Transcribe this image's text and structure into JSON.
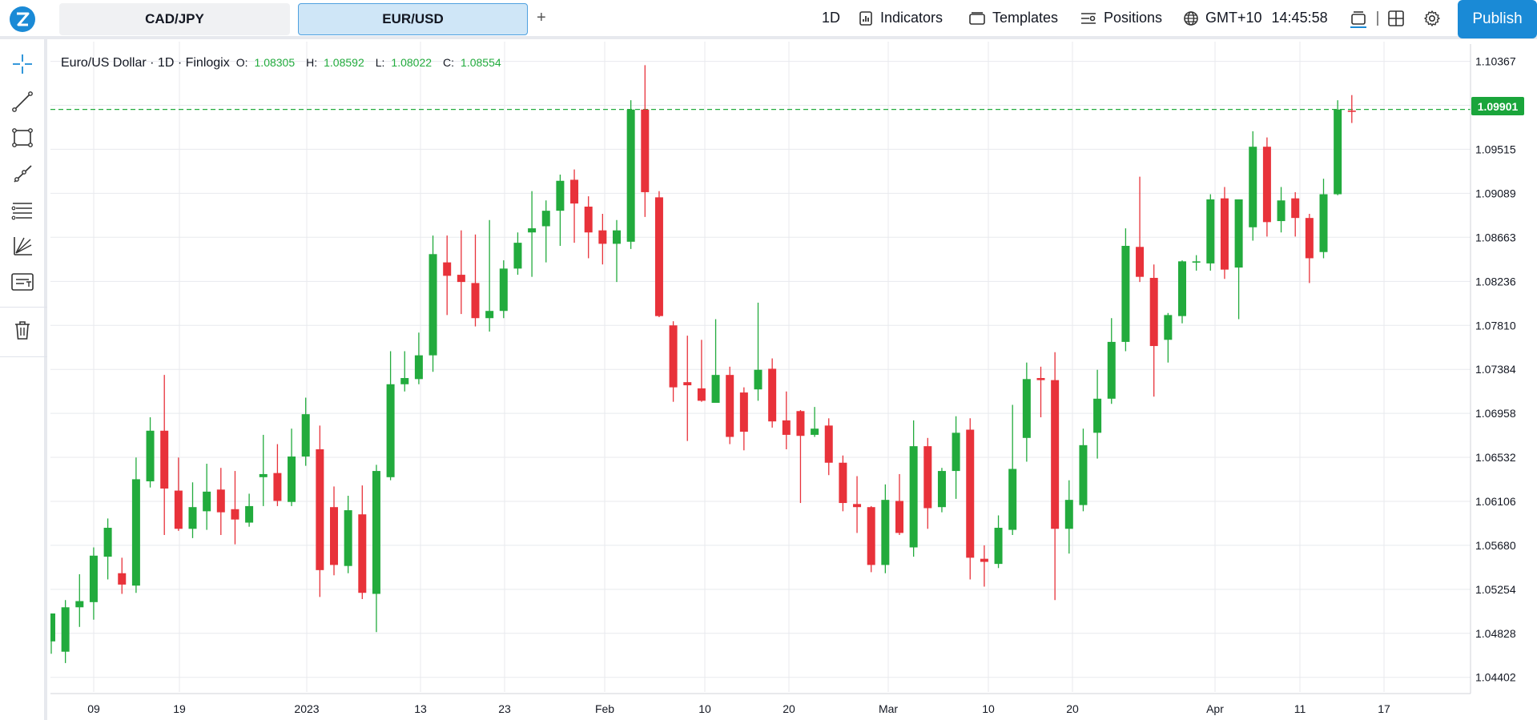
{
  "toolbar": {
    "tabs": [
      {
        "label": "CAD/JPY",
        "active": false
      },
      {
        "label": "EUR/USD",
        "active": true
      }
    ],
    "add_tab_label": "+",
    "interval": "1D",
    "indicators": "Indicators",
    "templates": "Templates",
    "positions": "Positions",
    "timezone": "GMT+10",
    "clock": "14:45:58",
    "publish": "Publish"
  },
  "left_tools": [
    "crosshair-icon",
    "trend-line-icon",
    "rectangle-icon",
    "ray-icon",
    "fib-retracement-icon",
    "pitchfork-icon",
    "text-note-icon",
    "trash-icon"
  ],
  "legend": {
    "title": "Euro/US Dollar · 1D · Finlogix",
    "o_label": "O:",
    "o": "1.08305",
    "h_label": "H:",
    "h": "1.08592",
    "l_label": "L:",
    "l": "1.08022",
    "c_label": "C:",
    "c": "1.08554"
  },
  "last_price": "1.09901",
  "colors": {
    "up": "#22ab3d",
    "down": "#e8323a",
    "accent": "#1a8ad6",
    "grid": "#e8eaee"
  },
  "chart_data": {
    "type": "candlestick",
    "y_ticks": [
      "1.10367",
      "1.09941",
      "1.09515",
      "1.09089",
      "1.08663",
      "1.08236",
      "1.07810",
      "1.07384",
      "1.06958",
      "1.06532",
      "1.06106",
      "1.05680",
      "1.05254",
      "1.04828",
      "1.04402"
    ],
    "x_ticks": [
      "09",
      "19",
      "2023",
      "13",
      "23",
      "Feb",
      "10",
      "20",
      "Mar",
      "10",
      "20",
      "Apr",
      "11",
      "17"
    ],
    "ylim": [
      1.0426,
      1.1048
    ],
    "last_price": 1.09901,
    "candles": [
      [
        1.0475,
        1.0502,
        1.0463,
        1.0499
      ],
      [
        1.0465,
        1.0508,
        1.0454,
        1.0515
      ],
      [
        1.0508,
        1.0514,
        1.0489,
        1.054
      ],
      [
        1.0513,
        1.0558,
        1.0496,
        1.0566
      ],
      [
        1.0557,
        1.0585,
        1.0535,
        1.0594
      ],
      [
        1.0541,
        1.053,
        1.0521,
        1.0556
      ],
      [
        1.0529,
        1.0632,
        1.0522,
        1.0653
      ],
      [
        1.063,
        1.0679,
        1.0624,
        1.0692
      ],
      [
        1.0679,
        1.0623,
        1.0578,
        1.0733
      ],
      [
        1.0621,
        1.0584,
        1.0582,
        1.0653
      ],
      [
        1.0584,
        1.0605,
        1.0575,
        1.0629
      ],
      [
        1.0601,
        1.062,
        1.0583,
        1.0647
      ],
      [
        1.0622,
        1.06,
        1.0578,
        1.0643
      ],
      [
        1.0603,
        1.0593,
        1.0569,
        1.064
      ],
      [
        1.059,
        1.0606,
        1.0586,
        1.0618
      ],
      [
        1.0634,
        1.0637,
        1.0606,
        1.0675
      ],
      [
        1.0638,
        1.0611,
        1.0606,
        1.0666
      ],
      [
        1.061,
        1.0654,
        1.0606,
        1.0681
      ],
      [
        1.0654,
        1.0695,
        1.0645,
        1.0711
      ],
      [
        1.0661,
        1.0544,
        1.0518,
        1.0684
      ],
      [
        1.0605,
        1.0549,
        1.0539,
        1.0625
      ],
      [
        1.0548,
        1.0602,
        1.0541,
        1.0616
      ],
      [
        1.0598,
        1.0522,
        1.0516,
        1.0626
      ],
      [
        1.0521,
        1.064,
        1.0484,
        1.0646
      ],
      [
        1.0634,
        1.0724,
        1.0631,
        1.0756
      ],
      [
        1.0724,
        1.073,
        1.0717,
        1.0756
      ],
      [
        1.0729,
        1.0752,
        1.0724,
        1.0774
      ],
      [
        1.0752,
        1.085,
        1.0736,
        1.0868
      ],
      [
        1.0842,
        1.0829,
        1.0791,
        1.0868
      ],
      [
        1.083,
        1.0823,
        1.0792,
        1.0873
      ],
      [
        1.0822,
        1.0788,
        1.078,
        1.0869
      ],
      [
        1.0788,
        1.0795,
        1.0775,
        1.0883
      ],
      [
        1.0795,
        1.0836,
        1.0788,
        1.0844
      ],
      [
        1.0836,
        1.0861,
        1.083,
        1.0871
      ],
      [
        1.0871,
        1.0875,
        1.0828,
        1.0911
      ],
      [
        1.0877,
        1.0892,
        1.0842,
        1.0902
      ],
      [
        1.0892,
        1.0921,
        1.0858,
        1.0927
      ],
      [
        1.0922,
        1.0899,
        1.0861,
        1.0932
      ],
      [
        1.0896,
        1.0871,
        1.0846,
        1.0906
      ],
      [
        1.0873,
        1.086,
        1.084,
        1.0889
      ],
      [
        1.086,
        1.0873,
        1.0823,
        1.0883
      ],
      [
        1.0862,
        1.099,
        1.0855,
        1.0999
      ],
      [
        1.099,
        1.091,
        1.0886,
        1.1033
      ],
      [
        1.0905,
        1.079,
        1.0789,
        1.0911
      ],
      [
        1.0781,
        1.0721,
        1.0707,
        1.0785
      ],
      [
        1.0726,
        1.0723,
        1.0669,
        1.0771
      ],
      [
        1.072,
        1.0708,
        1.0707,
        1.0767
      ],
      [
        1.0706,
        1.0733,
        1.0707,
        1.0787
      ],
      [
        1.0733,
        1.0673,
        1.0666,
        1.0741
      ],
      [
        1.0716,
        1.0678,
        1.066,
        1.0721
      ],
      [
        1.0719,
        1.0738,
        1.0708,
        1.0803
      ],
      [
        1.0739,
        1.0688,
        1.0682,
        1.0749
      ],
      [
        1.0689,
        1.0675,
        1.0661,
        1.0717
      ],
      [
        1.0698,
        1.0674,
        1.0609,
        1.0699
      ],
      [
        1.0675,
        1.0681,
        1.0673,
        1.0702
      ],
      [
        1.0684,
        1.0648,
        1.0636,
        1.0691
      ],
      [
        1.0648,
        1.0609,
        1.0601,
        1.0655
      ],
      [
        1.0608,
        1.0605,
        1.058,
        1.0635
      ],
      [
        1.0605,
        1.0549,
        1.0542,
        1.0606
      ],
      [
        1.0549,
        1.0612,
        1.0541,
        1.0627
      ],
      [
        1.0611,
        1.058,
        1.0578,
        1.0637
      ],
      [
        1.0566,
        1.0664,
        1.0557,
        1.0689
      ],
      [
        1.0664,
        1.0604,
        1.0584,
        1.0672
      ],
      [
        1.0605,
        1.064,
        1.06,
        1.0643
      ],
      [
        1.064,
        1.0677,
        1.0613,
        1.0693
      ],
      [
        1.068,
        1.0556,
        1.0535,
        1.0691
      ],
      [
        1.0555,
        1.0552,
        1.0528,
        1.0568
      ],
      [
        1.055,
        1.0585,
        1.0546,
        1.0597
      ],
      [
        1.0583,
        1.0642,
        1.0578,
        1.0704
      ],
      [
        1.0672,
        1.0729,
        1.0649,
        1.0745
      ],
      [
        1.073,
        1.0728,
        1.0692,
        1.0741
      ],
      [
        1.0728,
        1.0584,
        1.0515,
        1.0755
      ],
      [
        1.0584,
        1.0612,
        1.056,
        1.0631
      ],
      [
        1.0607,
        1.0665,
        1.0601,
        1.0681
      ],
      [
        1.0677,
        1.071,
        1.0652,
        1.0738
      ],
      [
        1.071,
        1.0765,
        1.0705,
        1.0788
      ],
      [
        1.0765,
        1.0858,
        1.0756,
        1.0875
      ],
      [
        1.0857,
        1.0828,
        1.0823,
        1.0925
      ],
      [
        1.0827,
        1.0761,
        1.0712,
        1.084
      ],
      [
        1.0767,
        1.0791,
        1.0745,
        1.0793
      ],
      [
        1.079,
        1.0843,
        1.0783,
        1.0844
      ],
      [
        1.0843,
        1.0843,
        1.0834,
        1.0849
      ],
      [
        1.0841,
        1.0903,
        1.0834,
        1.0908
      ],
      [
        1.0904,
        1.0835,
        1.0826,
        1.0915
      ],
      [
        1.0837,
        1.0903,
        1.0787,
        1.0902
      ],
      [
        1.0876,
        1.0954,
        1.0863,
        1.0969
      ],
      [
        1.0954,
        1.0881,
        1.0867,
        1.0963
      ],
      [
        1.0882,
        1.0902,
        1.0871,
        1.0915
      ],
      [
        1.0904,
        1.0885,
        1.0867,
        1.091
      ],
      [
        1.0885,
        1.0846,
        1.0822,
        1.0889
      ],
      [
        1.0852,
        1.0908,
        1.0846,
        1.0923
      ],
      [
        1.0908,
        1.099,
        1.0907,
        1.0999
      ],
      [
        1.0989,
        1.0988,
        1.0977,
        1.1004
      ]
    ]
  }
}
